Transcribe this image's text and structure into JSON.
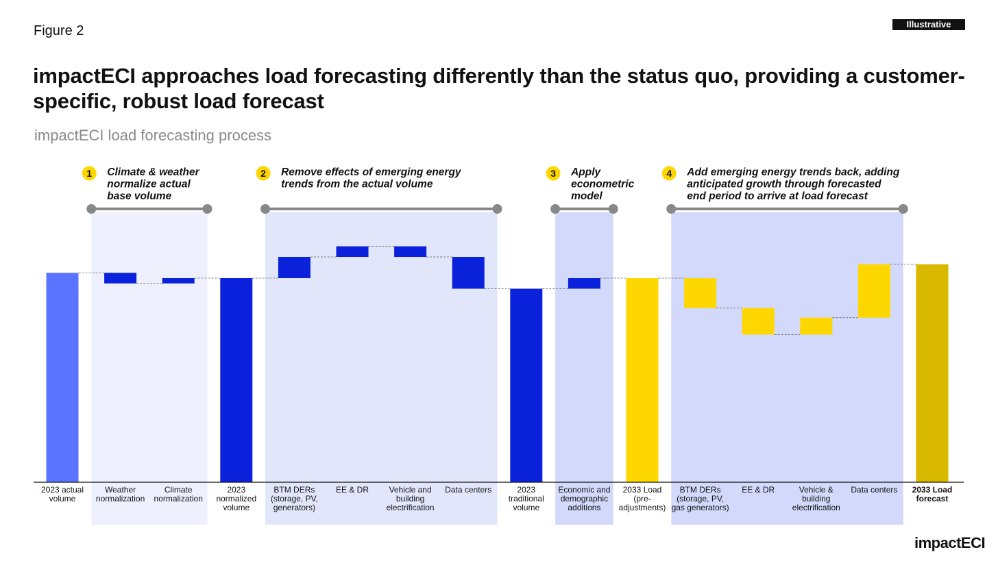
{
  "header": {
    "figure_label": "Figure 2",
    "badge": "Illustrative",
    "title": "impactECI approaches load forecasting differently than the status quo, providing a customer-specific, robust load forecast",
    "subtitle": "impactECI load forecasting process",
    "logo": "impactECI"
  },
  "colors": {
    "actual": "#5B74FF",
    "blue": "#0A22DC",
    "yellow": "#FFD700",
    "forecast": "#D9B800",
    "band_light": "#EEF0FD",
    "band_mid": "#E2E6FB",
    "band_dark": "#D2D9FA",
    "step_circle": "#FFD700",
    "bracket": "#888888"
  },
  "chart_data": {
    "type": "waterfall",
    "title": "impactECI load forecasting process",
    "value_units": "relative (axis not labeled)",
    "ylim": [
      0,
      100
    ],
    "categories": [
      "2023 actual volume",
      "Weather normalization",
      "Climate normalization",
      "2023 normalized volume",
      "BTM DERs (storage, PV, generators)",
      "EE & DR",
      "Vehicle and building electrification",
      "Data centers",
      "2023 traditional volume",
      "Economic and demographic additions",
      "2033 Load (pre-adjustments)",
      "BTM DERs (storage, PV, gas generators)",
      "EE & DR",
      "Vehicle & building electrification",
      "Data centers",
      "2033 Load forecast"
    ],
    "bars": [
      {
        "label_lines": [
          "2023 actual",
          "volume"
        ],
        "kind": "total",
        "start": 0,
        "end": 79,
        "color": "actual"
      },
      {
        "label_lines": [
          "Weather",
          "normalization"
        ],
        "kind": "delta",
        "start": 79,
        "end": 75,
        "color": "blue",
        "band": 1
      },
      {
        "label_lines": [
          "Climate",
          "normalization"
        ],
        "kind": "delta",
        "start": 75,
        "end": 77,
        "color": "blue",
        "band": 1
      },
      {
        "label_lines": [
          "2023",
          "normalized",
          "volume"
        ],
        "kind": "total",
        "start": 0,
        "end": 77,
        "color": "blue"
      },
      {
        "label_lines": [
          "BTM DERs",
          "(storage, PV,",
          "generators)"
        ],
        "kind": "delta",
        "start": 77,
        "end": 85,
        "color": "blue",
        "band": 2
      },
      {
        "label_lines": [
          "EE & DR"
        ],
        "kind": "delta",
        "start": 85,
        "end": 89,
        "color": "blue",
        "band": 2
      },
      {
        "label_lines": [
          "Vehicle and",
          "building",
          "electrification"
        ],
        "kind": "delta",
        "start": 89,
        "end": 85,
        "color": "blue",
        "band": 2
      },
      {
        "label_lines": [
          "Data centers"
        ],
        "kind": "delta",
        "start": 85,
        "end": 73,
        "color": "blue",
        "band": 2
      },
      {
        "label_lines": [
          "2023",
          "traditional",
          "volume"
        ],
        "kind": "total",
        "start": 0,
        "end": 73,
        "color": "blue"
      },
      {
        "label_lines": [
          "Economic and",
          "demographic",
          "additions"
        ],
        "kind": "delta",
        "start": 73,
        "end": 77,
        "color": "blue",
        "band": 3
      },
      {
        "label_lines": [
          "2033 Load",
          "(pre-",
          "adjustments)"
        ],
        "kind": "total",
        "start": 0,
        "end": 77,
        "color": "yellow"
      },
      {
        "label_lines": [
          "BTM DERs",
          "(storage, PV,",
          "gas generators)"
        ],
        "kind": "delta",
        "start": 77,
        "end": 65.7,
        "color": "yellow",
        "band": 4
      },
      {
        "label_lines": [
          "EE & DR"
        ],
        "kind": "delta",
        "start": 65.7,
        "end": 55.7,
        "color": "yellow",
        "band": 4
      },
      {
        "label_lines": [
          "Vehicle &",
          "building",
          "electrification"
        ],
        "kind": "delta",
        "start": 55.7,
        "end": 62.1,
        "color": "yellow",
        "band": 4
      },
      {
        "label_lines": [
          "Data centers"
        ],
        "kind": "delta",
        "start": 62.1,
        "end": 82.2,
        "color": "yellow",
        "band": 4
      },
      {
        "label_lines": [
          "2033 Load",
          "forecast"
        ],
        "kind": "total",
        "start": 0,
        "end": 82.2,
        "color": "forecast",
        "bold": true
      }
    ],
    "steps": [
      {
        "number": "1",
        "lines": [
          "Climate & weather",
          "normalize actual",
          "base volume"
        ],
        "bars": [
          1,
          2
        ],
        "band_color": "band_light"
      },
      {
        "number": "2",
        "lines": [
          "Remove effects of emerging energy",
          "trends from the actual volume"
        ],
        "bars": [
          4,
          7
        ],
        "band_color": "band_mid"
      },
      {
        "number": "3",
        "lines": [
          "Apply",
          "econometric",
          "model"
        ],
        "bars": [
          9,
          9
        ],
        "band_color": "band_dark"
      },
      {
        "number": "4",
        "lines": [
          "Add emerging energy trends back, adding",
          "anticipated growth through forecasted",
          "end period to arrive at load forecast"
        ],
        "bars": [
          11,
          14
        ],
        "band_color": "band_dark"
      }
    ]
  }
}
